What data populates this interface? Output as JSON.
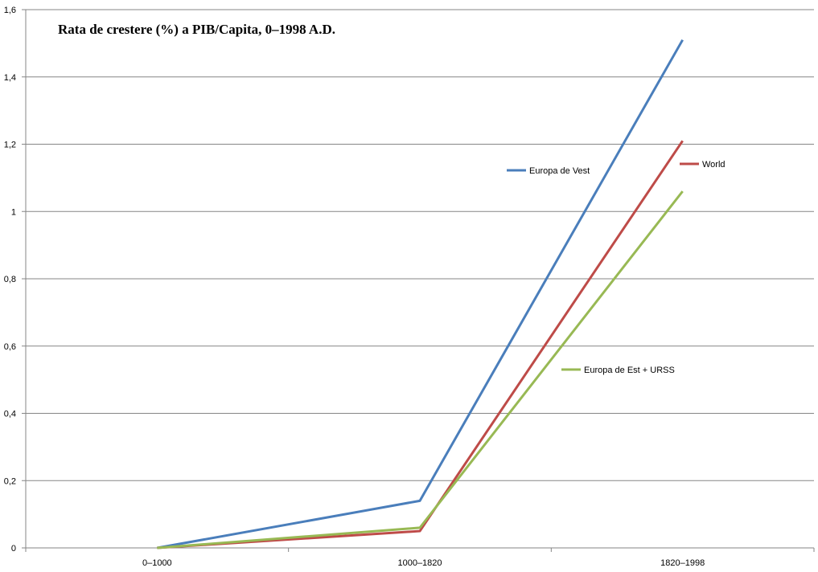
{
  "chart_data": {
    "type": "line",
    "title": "Rata de crestere (%) a PIB/Capita, 0–1998 A.D.",
    "xlabel": "",
    "ylabel": "",
    "categories": [
      "0–1000",
      "1000–1820",
      "1820–1998"
    ],
    "ylim": [
      0,
      1.6
    ],
    "yticks": [
      0,
      0.2,
      0.4,
      0.6,
      0.8,
      1,
      1.2,
      1.4,
      1.6
    ],
    "ytick_labels": [
      "0",
      "0,2",
      "0,4",
      "0,6",
      "0,8",
      "1",
      "1,2",
      "1,4",
      "1,6"
    ],
    "grid": "horizontal",
    "legend": "inline labels",
    "series": [
      {
        "name": "Europa de Vest",
        "values": [
          0.0,
          0.14,
          1.51
        ],
        "color": "#4a7ebb"
      },
      {
        "name": "World",
        "values": [
          0.0,
          0.05,
          1.21
        ],
        "color": "#be4b48"
      },
      {
        "name": "Europa de Est + URSS",
        "values": [
          0.0,
          0.06,
          1.06
        ],
        "color": "#98b954"
      }
    ]
  }
}
